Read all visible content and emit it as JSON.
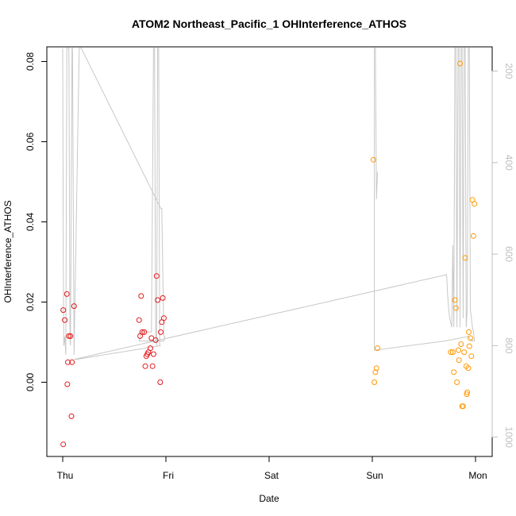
{
  "chart_data": {
    "type": "scatter",
    "title": "ATOM2 Northeast_Pacific_1 OHInterference_ATHOS",
    "xlabel": "Date",
    "ylabel": "OHInterference_ATHOS",
    "x_ticks": [
      "Thu",
      "Fri",
      "Sat",
      "Sun",
      "Mon"
    ],
    "x_range_days": [
      -0.16,
      4.16
    ],
    "ylim": [
      -0.0185,
      0.0835
    ],
    "y_ticks": [
      0.0,
      0.02,
      0.04,
      0.06,
      0.08
    ],
    "y_tick_labels": [
      "0.00",
      "0.02",
      "0.04",
      "0.06",
      "0.08"
    ],
    "y2_label_color": "#bfbfbf",
    "y2_ticks": [
      200,
      400,
      600,
      800,
      1000
    ],
    "y2_tick_labels": [
      "200",
      "400",
      "600",
      "800",
      "1000"
    ],
    "y2_range": [
      1045,
      150
    ],
    "grid": false,
    "colors": {
      "red": "#e31a1c",
      "orange": "#ff9900",
      "line": "#c8c8c8"
    },
    "series": [
      {
        "color": "red",
        "points": [
          [
            0.005,
            0.018
          ],
          [
            0.02,
            0.0155
          ],
          [
            0.04,
            0.022
          ],
          [
            0.05,
            0.005
          ],
          [
            0.06,
            0.0115
          ],
          [
            0.075,
            0.0115
          ],
          [
            0.09,
            0.005
          ],
          [
            0.11,
            0.019
          ],
          [
            0.045,
            -0.0005
          ],
          [
            0.085,
            -0.0085
          ],
          [
            0.005,
            -0.0155
          ],
          [
            0.74,
            0.0155
          ],
          [
            0.76,
            0.0215
          ],
          [
            0.77,
            0.0125
          ],
          [
            0.79,
            0.0125
          ],
          [
            0.8,
            0.004
          ],
          [
            0.81,
            0.0065
          ],
          [
            0.83,
            0.0075
          ],
          [
            0.85,
            0.0085
          ],
          [
            0.86,
            0.011
          ],
          [
            0.87,
            0.004
          ],
          [
            0.88,
            0.007
          ],
          [
            0.9,
            0.0105
          ],
          [
            0.91,
            0.0265
          ],
          [
            0.92,
            0.0205
          ],
          [
            0.95,
            0.0125
          ],
          [
            0.96,
            0.015
          ],
          [
            0.97,
            0.021
          ],
          [
            0.98,
            0.016
          ],
          [
            0.945,
            0.0
          ],
          [
            0.75,
            0.0115
          ],
          [
            0.82,
            0.007
          ]
        ]
      },
      {
        "color": "orange",
        "points": [
          [
            3.01,
            0.0555
          ],
          [
            3.02,
            0.0
          ],
          [
            3.03,
            0.0025
          ],
          [
            3.04,
            0.0035
          ],
          [
            3.05,
            0.0085
          ],
          [
            3.76,
            0.0075
          ],
          [
            3.78,
            0.0075
          ],
          [
            3.79,
            0.0025
          ],
          [
            3.8,
            0.0205
          ],
          [
            3.81,
            0.0185
          ],
          [
            3.82,
            0.0
          ],
          [
            3.835,
            0.008
          ],
          [
            3.84,
            0.0055
          ],
          [
            3.85,
            0.0795
          ],
          [
            3.86,
            0.0095
          ],
          [
            3.87,
            -0.006
          ],
          [
            3.88,
            -0.006
          ],
          [
            3.89,
            0.0075
          ],
          [
            3.9,
            0.031
          ],
          [
            3.91,
            0.004
          ],
          [
            3.92,
            -0.0025
          ],
          [
            3.93,
            0.0035
          ],
          [
            3.935,
            0.0125
          ],
          [
            3.94,
            0.009
          ],
          [
            3.95,
            0.011
          ],
          [
            3.96,
            0.0065
          ],
          [
            3.97,
            0.0455
          ],
          [
            3.98,
            0.0365
          ],
          [
            3.99,
            0.0445
          ],
          [
            3.915,
            -0.003
          ]
        ]
      }
    ],
    "altitude_trace": [
      [
        0.0,
        150
      ],
      [
        0.005,
        600
      ],
      [
        0.01,
        800
      ],
      [
        0.02,
        780
      ],
      [
        0.03,
        820
      ],
      [
        0.04,
        150
      ],
      [
        0.06,
        150
      ],
      [
        0.07,
        780
      ],
      [
        0.075,
        800
      ],
      [
        0.09,
        150
      ],
      [
        0.095,
        150
      ],
      [
        0.11,
        820
      ],
      [
        0.16,
        150
      ],
      [
        0.18,
        150
      ],
      [
        0.95,
        500
      ],
      [
        0.96,
        500
      ],
      [
        0.98,
        780
      ],
      [
        0.99,
        780
      ],
      [
        0.98,
        790
      ],
      [
        0.82,
        790
      ],
      [
        0.74,
        790
      ],
      [
        0.76,
        770
      ],
      [
        0.8,
        770
      ],
      [
        0.86,
        770
      ],
      [
        0.88,
        150
      ],
      [
        0.89,
        150
      ],
      [
        0.9,
        770
      ],
      [
        0.91,
        800
      ],
      [
        0.92,
        150
      ],
      [
        0.93,
        150
      ],
      [
        0.94,
        800
      ],
      [
        0.95,
        800
      ],
      [
        0.13,
        830
      ],
      [
        0.11,
        830
      ],
      [
        3.72,
        645
      ],
      [
        3.73,
        690
      ],
      [
        3.74,
        720
      ],
      [
        3.75,
        740
      ],
      [
        3.77,
        760
      ],
      [
        3.78,
        580
      ],
      [
        3.79,
        760
      ],
      [
        3.8,
        150
      ],
      [
        3.81,
        150
      ],
      [
        3.82,
        760
      ],
      [
        3.83,
        150
      ],
      [
        3.84,
        150
      ],
      [
        3.85,
        760
      ],
      [
        3.86,
        150
      ],
      [
        3.87,
        150
      ],
      [
        3.88,
        740
      ],
      [
        3.89,
        150
      ],
      [
        3.9,
        150
      ],
      [
        3.91,
        760
      ],
      [
        3.92,
        720
      ],
      [
        3.93,
        150
      ],
      [
        3.94,
        150
      ],
      [
        3.95,
        720
      ],
      [
        3.96,
        740
      ],
      [
        3.97,
        760
      ],
      [
        3.98,
        770
      ],
      [
        3.99,
        790
      ],
      [
        3.97,
        790
      ],
      [
        3.93,
        780
      ],
      [
        3.7,
        790
      ],
      [
        3.02,
        810
      ],
      [
        3.02,
        150
      ],
      [
        3.03,
        150
      ],
      [
        3.04,
        480
      ],
      [
        3.05,
        420
      ]
    ]
  }
}
